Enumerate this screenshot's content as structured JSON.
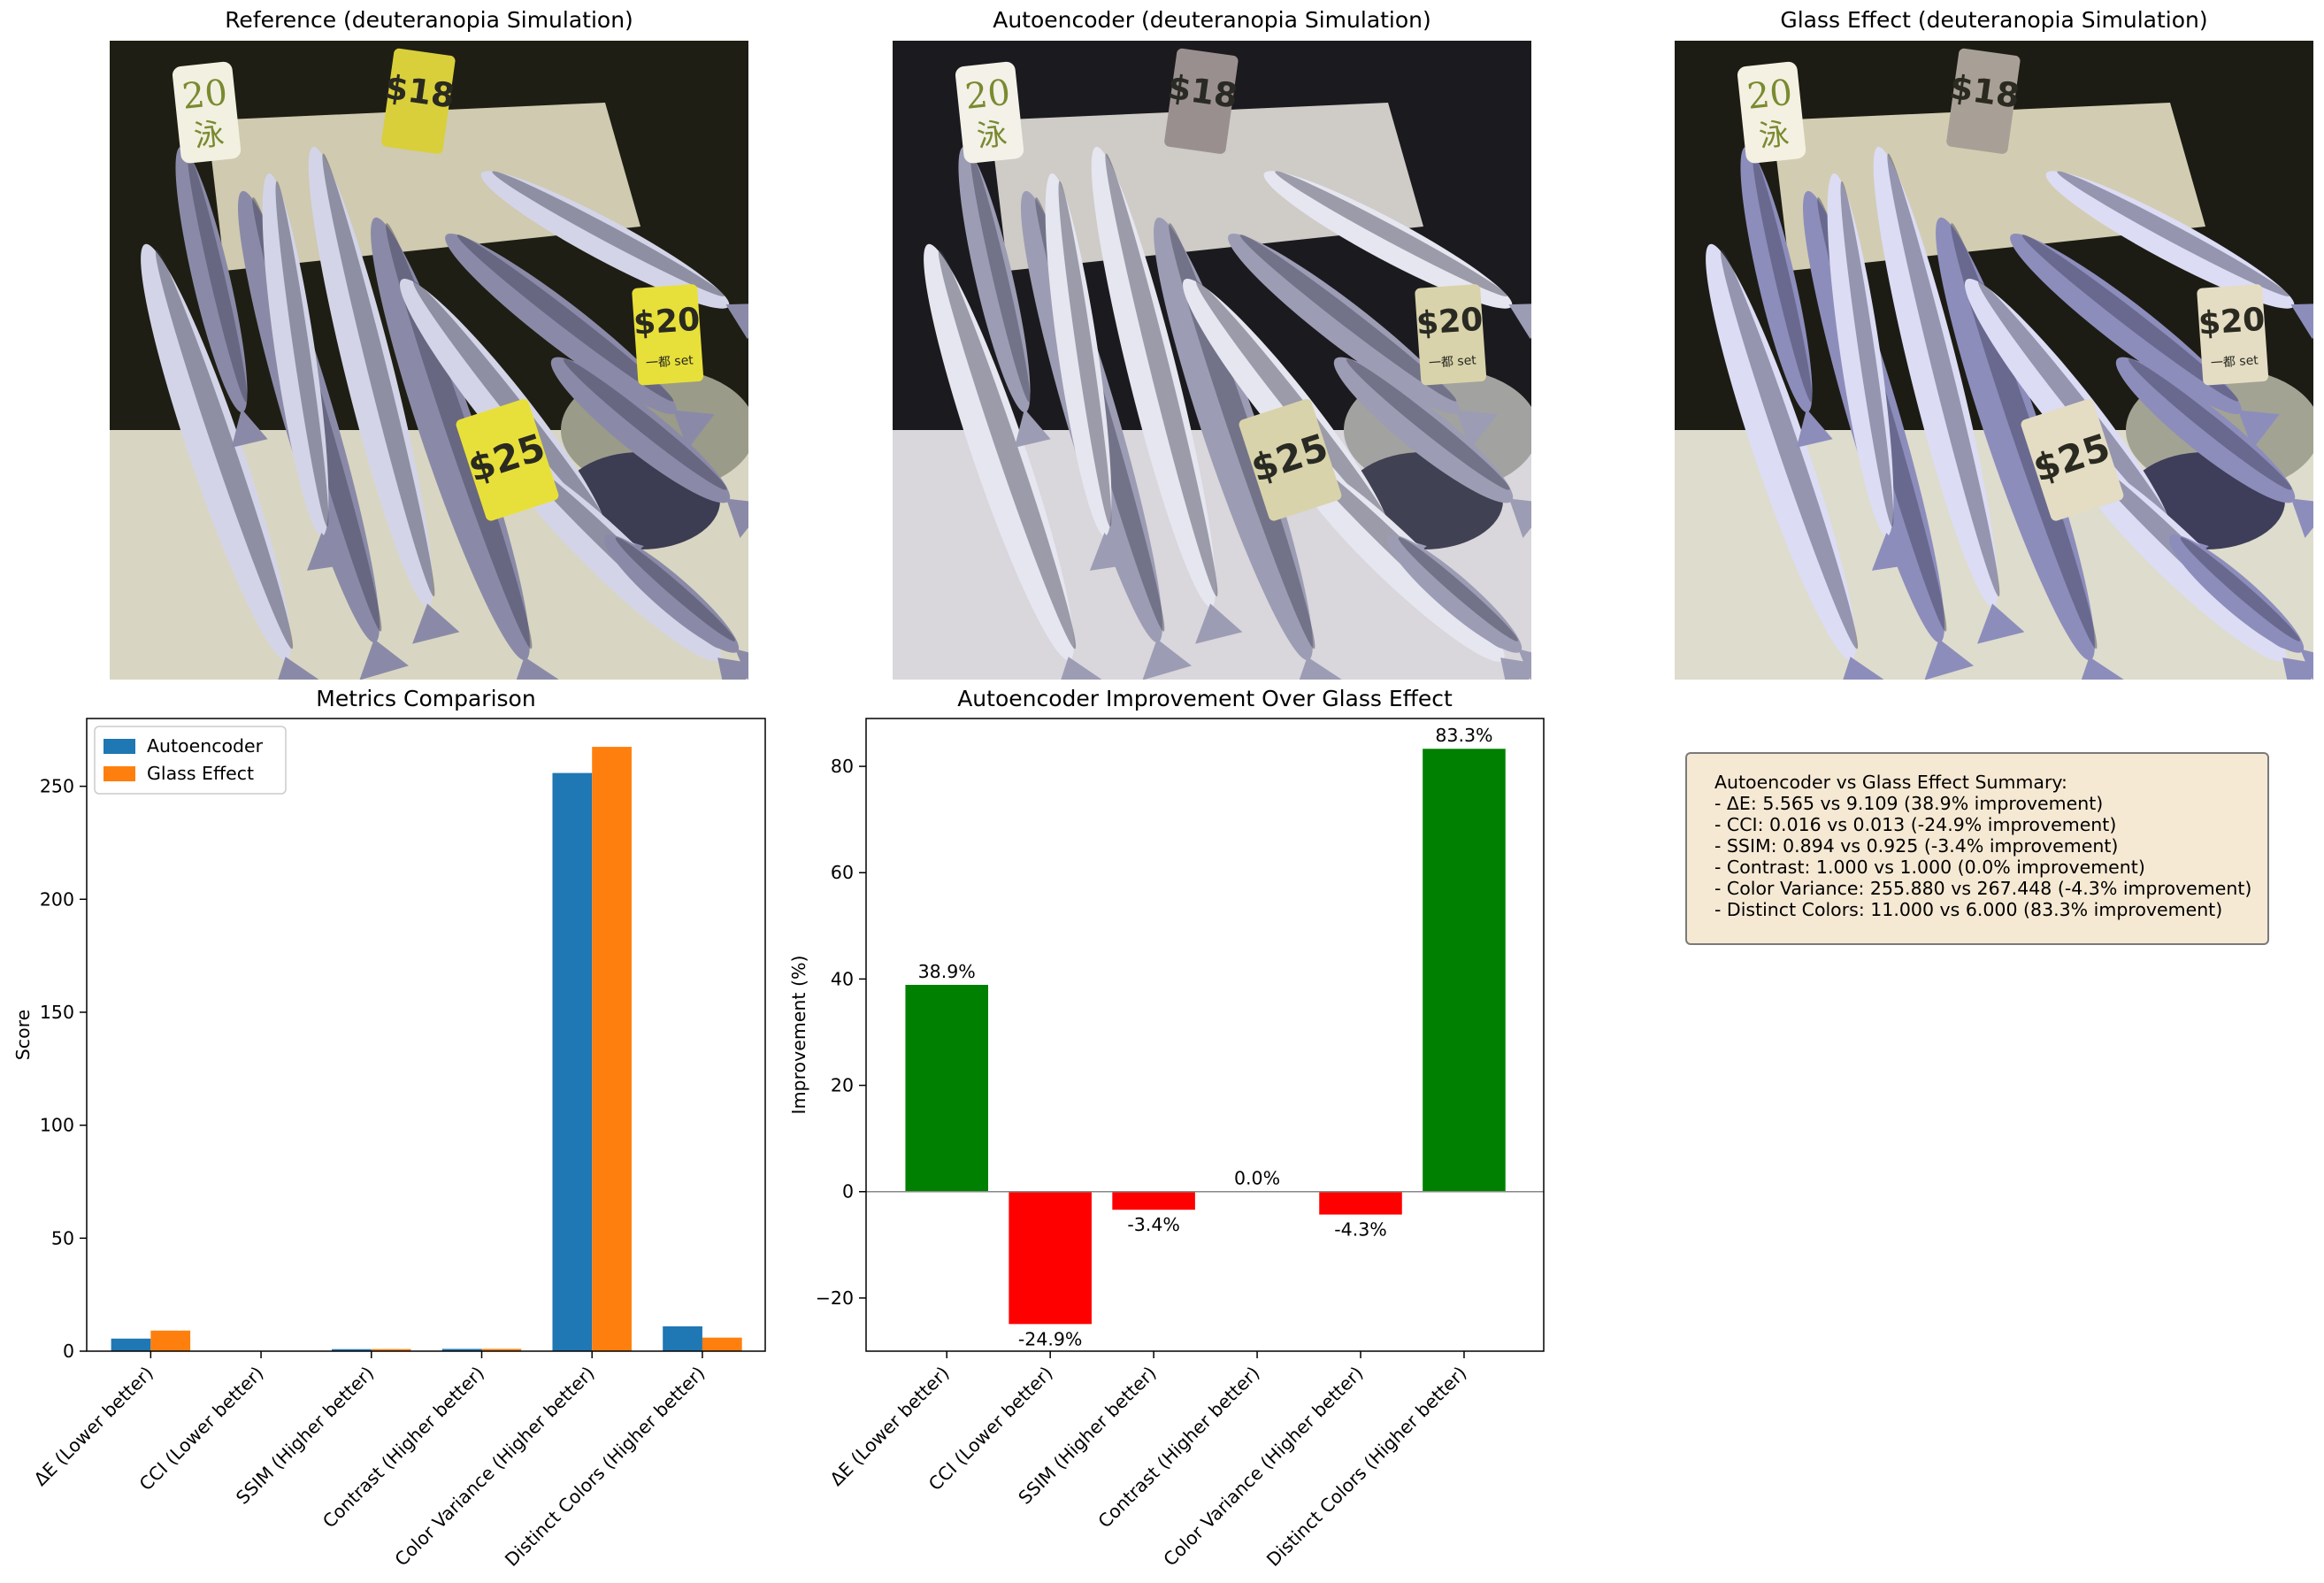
{
  "panels": [
    {
      "title": "Reference (deuteranopia Simulation)"
    },
    {
      "title": "Autoencoder (deuteranopia Simulation)"
    },
    {
      "title": "Glass Effect (deuteranopia Simulation)"
    }
  ],
  "photo_labels": {
    "tag1": "20",
    "tag1_sub": "泳",
    "tag2": "$18",
    "tag3": "$20",
    "tag3_sub": "一都 set",
    "tag4": "$25"
  },
  "colors": {
    "autoencoder": "#1f77b4",
    "glass": "#ff7f0e",
    "positive": "#008000",
    "negative": "#ff0000"
  },
  "chart_data": [
    {
      "type": "bar",
      "title": "Metrics Comparison",
      "ylabel": "Score",
      "xlabel": "",
      "ylim": [
        0,
        280
      ],
      "yticks": [
        0,
        50,
        100,
        150,
        200,
        250
      ],
      "legend": "top-left",
      "categories": [
        "ΔE (Lower better)",
        "CCI (Lower better)",
        "SSIM (Higher better)",
        "Contrast (Higher better)",
        "Color Variance (Higher better)",
        "Distinct Colors (Higher better)"
      ],
      "series": [
        {
          "name": "Autoencoder",
          "values": [
            5.565,
            0.016,
            0.894,
            1.0,
            255.88,
            11.0
          ]
        },
        {
          "name": "Glass Effect",
          "values": [
            9.109,
            0.013,
            0.925,
            1.0,
            267.448,
            6.0
          ]
        }
      ]
    },
    {
      "type": "bar",
      "title": "Autoencoder Improvement Over Glass Effect",
      "ylabel": "Improvement (%)",
      "xlabel": "",
      "ylim": [
        -30,
        89
      ],
      "yticks": [
        -20,
        0,
        20,
        40,
        60,
        80
      ],
      "categories": [
        "ΔE (Lower better)",
        "CCI (Lower better)",
        "SSIM (Higher better)",
        "Contrast (Higher better)",
        "Color Variance (Higher better)",
        "Distinct Colors (Higher better)"
      ],
      "values": [
        38.9,
        -24.9,
        -3.4,
        0.0,
        -4.3,
        83.3
      ],
      "labels": [
        "38.9%",
        "-24.9%",
        "-3.4%",
        "0.0%",
        "-4.3%",
        "83.3%"
      ]
    }
  ],
  "summary": {
    "lines": [
      "Autoencoder vs Glass Effect Summary:",
      "- ΔE: 5.565 vs 9.109 (38.9% improvement)",
      "- CCI: 0.016 vs 0.013 (-24.9% improvement)",
      "- SSIM: 0.894 vs 0.925 (-3.4% improvement)",
      "- Contrast: 1.000 vs 1.000 (0.0% improvement)",
      "- Color Variance: 255.880 vs 267.448 (-4.3% improvement)",
      "- Distinct Colors: 11.000 vs 6.000 (83.3% improvement)"
    ]
  }
}
